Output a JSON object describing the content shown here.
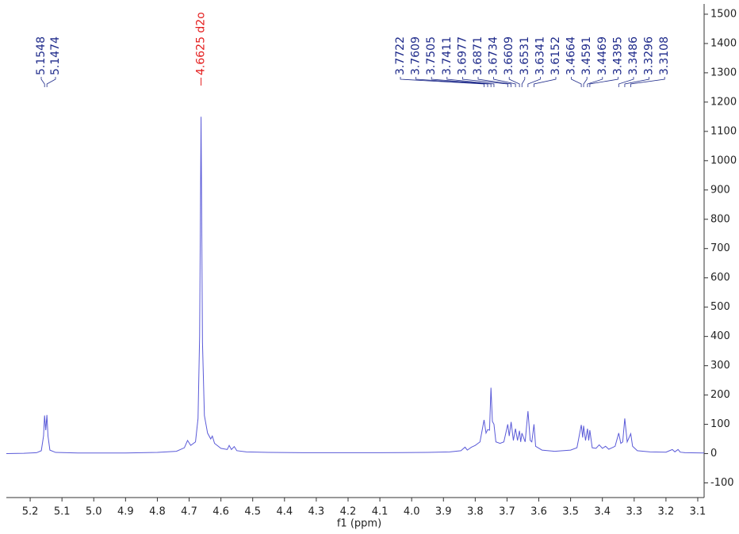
{
  "chart_data": {
    "type": "line",
    "x_label": "f1 (ppm)",
    "color": "#5a5ad8",
    "xlim": [
      5.275,
      3.08
    ],
    "ylim": [
      -150,
      1535
    ],
    "xticks": [
      5.2,
      5.1,
      {
        "value": 5,
        "label": "5.0"
      },
      4.9,
      4.8,
      4.7,
      4.6,
      4.5,
      4.4,
      4.3,
      4.2,
      4.1,
      {
        "value": 4,
        "label": "4.0"
      },
      3.9,
      3.8,
      3.7,
      3.6,
      3.5,
      3.4,
      3.3,
      3.2,
      3.1
    ],
    "yticks": [
      -100,
      0,
      100,
      200,
      300,
      400,
      500,
      600,
      700,
      800,
      900,
      1000,
      1100,
      1200,
      1300,
      1400,
      1500
    ],
    "peak_labels": [
      5.1548,
      5.1474,
      3.7722,
      3.7609,
      3.7505,
      3.7411,
      3.6977,
      3.6871,
      3.6734,
      3.6609,
      3.6531,
      3.6341,
      3.6152,
      3.4664,
      3.4591,
      3.4469,
      3.4395,
      3.3486,
      3.3296,
      3.3108
    ],
    "solvent_label": {
      "value": 4.6625,
      "label": "4.6625 d2o"
    },
    "x": [
      5.275,
      5.22,
      5.18,
      5.165,
      5.158,
      5.1548,
      5.151,
      5.1474,
      5.144,
      5.138,
      5.12,
      5.05,
      4.9,
      4.8,
      4.74,
      4.715,
      4.705,
      4.695,
      4.68,
      4.672,
      4.667,
      4.6625,
      4.658,
      4.652,
      4.642,
      4.632,
      4.627,
      4.62,
      4.6,
      4.58,
      4.574,
      4.567,
      4.558,
      4.55,
      4.52,
      4.45,
      4.3,
      4.1,
      3.95,
      3.88,
      3.845,
      3.832,
      3.825,
      3.812,
      3.8,
      3.785,
      3.7722,
      3.766,
      3.7609,
      3.755,
      3.7505,
      3.746,
      3.7411,
      3.735,
      3.722,
      3.71,
      3.6977,
      3.693,
      3.6871,
      3.68,
      3.6734,
      3.667,
      3.6609,
      3.657,
      3.6531,
      3.643,
      3.6341,
      3.627,
      3.622,
      3.6152,
      3.61,
      3.59,
      3.55,
      3.5,
      3.48,
      3.4664,
      3.462,
      3.4591,
      3.453,
      3.4469,
      3.443,
      3.4395,
      3.432,
      3.42,
      3.41,
      3.4,
      3.39,
      3.38,
      3.37,
      3.36,
      3.3486,
      3.342,
      3.336,
      3.3296,
      3.322,
      3.3108,
      3.305,
      3.29,
      3.25,
      3.2,
      3.18,
      3.172,
      3.162,
      3.155,
      3.14,
      3.08
    ],
    "values": [
      0,
      1,
      3,
      10,
      60,
      130,
      80,
      132,
      60,
      12,
      4,
      2,
      2,
      4,
      8,
      20,
      45,
      28,
      40,
      120,
      400,
      1150,
      380,
      130,
      70,
      50,
      60,
      35,
      18,
      14,
      28,
      14,
      24,
      10,
      6,
      4,
      3,
      3,
      4,
      6,
      10,
      22,
      12,
      22,
      28,
      40,
      115,
      70,
      82,
      80,
      225,
      110,
      100,
      40,
      35,
      40,
      100,
      60,
      108,
      45,
      85,
      45,
      78,
      40,
      70,
      40,
      145,
      45,
      40,
      100,
      25,
      12,
      8,
      12,
      20,
      98,
      55,
      95,
      45,
      85,
      45,
      80,
      20,
      18,
      30,
      18,
      25,
      15,
      20,
      25,
      70,
      35,
      40,
      120,
      40,
      68,
      25,
      10,
      6,
      5,
      14,
      6,
      14,
      5,
      3,
      2
    ]
  }
}
